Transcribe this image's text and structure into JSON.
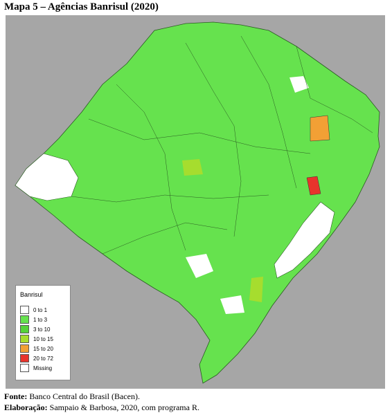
{
  "title": "Mapa 5 – Agências Banrisul (2020)",
  "legend": {
    "title": "Banrisul",
    "entries": [
      {
        "label": "0 to 1",
        "color": "#ffffff"
      },
      {
        "label": "1 to 3",
        "color": "#66e24e"
      },
      {
        "label": "3 to 10",
        "color": "#56d23a"
      },
      {
        "label": "10 to 15",
        "color": "#a6dd2e"
      },
      {
        "label": "15 to 20",
        "color": "#f2a035"
      },
      {
        "label": "20 to 72",
        "color": "#e8342c"
      },
      {
        "label": "Missing",
        "color": "#ffffff"
      }
    ]
  },
  "source": {
    "label": "Fonte:",
    "text": "Banco Central do Brasil (Bacen)."
  },
  "credit": {
    "label": "Elaboração:",
    "text": "Sampaio & Barbosa, 2020, com programa R."
  }
}
